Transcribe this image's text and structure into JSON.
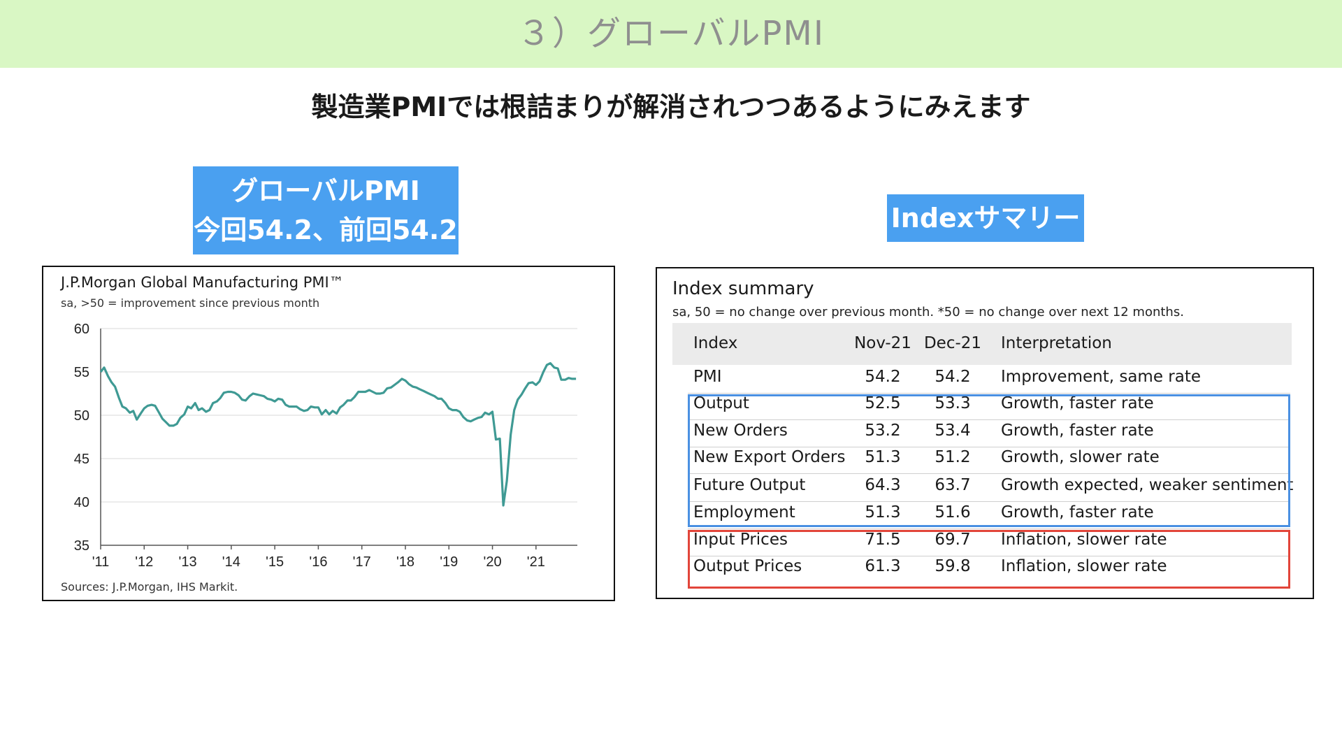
{
  "header": {
    "title": "３）グローバルPMI",
    "band_color": "#d9f7c4"
  },
  "subtitle": "製造業PMIでは根詰まりが解消されつつあるようにみえます",
  "left_label": {
    "line1": "グローバルPMI",
    "line2": "今回54.2、前回54.2"
  },
  "right_label": "Indexサマリー",
  "chart": {
    "title": "J.P.Morgan Global Manufacturing PMI™",
    "subtitle": "sa, >50 = improvement since previous month",
    "source": "Sources: J.P.Morgan, IHS Markit."
  },
  "chart_data": {
    "type": "line",
    "title": "J.P.Morgan Global Manufacturing PMI™",
    "xlabel": "",
    "ylabel": "",
    "ylim": [
      35,
      60
    ],
    "xlim": [
      2011.0,
      2021.95
    ],
    "y_ticks": [
      "60",
      "55",
      "50",
      "45",
      "40",
      "35"
    ],
    "x_ticks": [
      "'11",
      "'12",
      "'13",
      "'14",
      "'15",
      "'16",
      "'17",
      "'18",
      "'19",
      "'20",
      "'21"
    ],
    "grid": true,
    "line_color": "#3f9a94",
    "series": [
      {
        "name": "",
        "points": [
          [
            2011.0,
            55.0
          ],
          [
            2011.08,
            55.5
          ],
          [
            2011.17,
            54.5
          ],
          [
            2011.25,
            53.8
          ],
          [
            2011.33,
            53.3
          ],
          [
            2011.42,
            52.0
          ],
          [
            2011.5,
            51.0
          ],
          [
            2011.58,
            50.8
          ],
          [
            2011.67,
            50.3
          ],
          [
            2011.75,
            50.5
          ],
          [
            2011.83,
            49.5
          ],
          [
            2011.92,
            50.2
          ],
          [
            2012.0,
            50.8
          ],
          [
            2012.08,
            51.1
          ],
          [
            2012.17,
            51.2
          ],
          [
            2012.25,
            51.1
          ],
          [
            2012.33,
            50.4
          ],
          [
            2012.42,
            49.6
          ],
          [
            2012.5,
            49.2
          ],
          [
            2012.58,
            48.8
          ],
          [
            2012.67,
            48.8
          ],
          [
            2012.75,
            49.0
          ],
          [
            2012.83,
            49.7
          ],
          [
            2012.92,
            50.1
          ],
          [
            2013.0,
            51.0
          ],
          [
            2013.08,
            50.8
          ],
          [
            2013.17,
            51.4
          ],
          [
            2013.25,
            50.6
          ],
          [
            2013.33,
            50.8
          ],
          [
            2013.42,
            50.4
          ],
          [
            2013.5,
            50.6
          ],
          [
            2013.58,
            51.4
          ],
          [
            2013.67,
            51.6
          ],
          [
            2013.75,
            52.0
          ],
          [
            2013.83,
            52.6
          ],
          [
            2013.92,
            52.7
          ],
          [
            2014.0,
            52.7
          ],
          [
            2014.08,
            52.6
          ],
          [
            2014.17,
            52.3
          ],
          [
            2014.25,
            51.8
          ],
          [
            2014.33,
            51.7
          ],
          [
            2014.42,
            52.2
          ],
          [
            2014.5,
            52.5
          ],
          [
            2014.58,
            52.4
          ],
          [
            2014.67,
            52.3
          ],
          [
            2014.75,
            52.2
          ],
          [
            2014.83,
            51.9
          ],
          [
            2014.92,
            51.8
          ],
          [
            2015.0,
            51.6
          ],
          [
            2015.08,
            51.9
          ],
          [
            2015.17,
            51.8
          ],
          [
            2015.25,
            51.2
          ],
          [
            2015.33,
            51.0
          ],
          [
            2015.42,
            51.0
          ],
          [
            2015.5,
            51.0
          ],
          [
            2015.58,
            50.7
          ],
          [
            2015.67,
            50.5
          ],
          [
            2015.75,
            50.6
          ],
          [
            2015.83,
            51.0
          ],
          [
            2015.92,
            50.9
          ],
          [
            2016.0,
            50.9
          ],
          [
            2016.08,
            50.1
          ],
          [
            2016.17,
            50.6
          ],
          [
            2016.25,
            50.1
          ],
          [
            2016.33,
            50.5
          ],
          [
            2016.42,
            50.2
          ],
          [
            2016.5,
            50.9
          ],
          [
            2016.58,
            51.2
          ],
          [
            2016.67,
            51.7
          ],
          [
            2016.75,
            51.7
          ],
          [
            2016.83,
            52.1
          ],
          [
            2016.92,
            52.7
          ],
          [
            2017.0,
            52.7
          ],
          [
            2017.08,
            52.7
          ],
          [
            2017.17,
            52.9
          ],
          [
            2017.25,
            52.7
          ],
          [
            2017.33,
            52.5
          ],
          [
            2017.42,
            52.5
          ],
          [
            2017.5,
            52.6
          ],
          [
            2017.58,
            53.1
          ],
          [
            2017.67,
            53.2
          ],
          [
            2017.75,
            53.5
          ],
          [
            2017.83,
            53.8
          ],
          [
            2017.92,
            54.2
          ],
          [
            2018.0,
            54.0
          ],
          [
            2018.08,
            53.6
          ],
          [
            2018.17,
            53.3
          ],
          [
            2018.25,
            53.2
          ],
          [
            2018.33,
            53.0
          ],
          [
            2018.42,
            52.8
          ],
          [
            2018.5,
            52.6
          ],
          [
            2018.58,
            52.4
          ],
          [
            2018.67,
            52.2
          ],
          [
            2018.75,
            51.9
          ],
          [
            2018.83,
            51.9
          ],
          [
            2018.92,
            51.4
          ],
          [
            2019.0,
            50.8
          ],
          [
            2019.08,
            50.6
          ],
          [
            2019.17,
            50.6
          ],
          [
            2019.25,
            50.4
          ],
          [
            2019.33,
            49.8
          ],
          [
            2019.42,
            49.4
          ],
          [
            2019.5,
            49.3
          ],
          [
            2019.58,
            49.5
          ],
          [
            2019.67,
            49.7
          ],
          [
            2019.75,
            49.8
          ],
          [
            2019.83,
            50.3
          ],
          [
            2019.92,
            50.1
          ],
          [
            2020.0,
            50.4
          ],
          [
            2020.08,
            47.2
          ],
          [
            2020.17,
            47.3
          ],
          [
            2020.25,
            39.6
          ],
          [
            2020.33,
            42.4
          ],
          [
            2020.42,
            47.8
          ],
          [
            2020.5,
            50.6
          ],
          [
            2020.58,
            51.8
          ],
          [
            2020.67,
            52.4
          ],
          [
            2020.75,
            53.1
          ],
          [
            2020.83,
            53.7
          ],
          [
            2020.92,
            53.8
          ],
          [
            2021.0,
            53.5
          ],
          [
            2021.08,
            53.9
          ],
          [
            2021.17,
            55.0
          ],
          [
            2021.25,
            55.8
          ],
          [
            2021.33,
            56.0
          ],
          [
            2021.42,
            55.5
          ],
          [
            2021.5,
            55.4
          ],
          [
            2021.58,
            54.1
          ],
          [
            2021.67,
            54.1
          ],
          [
            2021.75,
            54.3
          ],
          [
            2021.83,
            54.2
          ],
          [
            2021.92,
            54.2
          ]
        ]
      }
    ]
  },
  "summary": {
    "title": "Index summary",
    "subtitle": "sa, 50 = no change over previous month. *50 = no change over next 12 months.",
    "columns": [
      "Index",
      "Nov-21",
      "Dec-21",
      "Interpretation"
    ],
    "rows": [
      [
        "PMI",
        "54.2",
        "54.2",
        "Improvement, same rate"
      ],
      [
        "Output",
        "52.5",
        "53.3",
        "Growth, faster rate"
      ],
      [
        "New Orders",
        "53.2",
        "53.4",
        "Growth, faster rate"
      ],
      [
        "New Export Orders",
        "51.3",
        "51.2",
        "Growth, slower rate"
      ],
      [
        "Future Output",
        "64.3",
        "63.7",
        "Growth expected, weaker sentiment"
      ],
      [
        "Employment",
        "51.3",
        "51.6",
        "Growth, faster rate"
      ],
      [
        "Input Prices",
        "71.5",
        "69.7",
        "Inflation, slower rate"
      ],
      [
        "Output Prices",
        "61.3",
        "59.8",
        "Inflation, slower rate"
      ]
    ],
    "highlight_blue": "#4a90e2",
    "highlight_red": "#e2453a"
  }
}
